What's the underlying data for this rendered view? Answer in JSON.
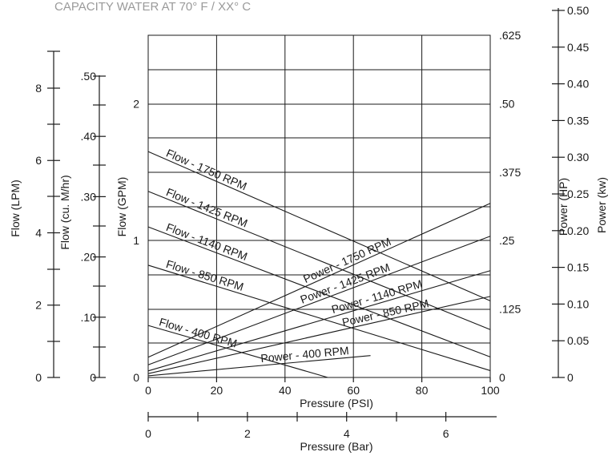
{
  "chart_data": {
    "type": "line",
    "title": "CAPACITY  WATER AT 70° F / XX° C",
    "xlabel": "Pressure (PSI)",
    "xlabel_bar": "Pressure (Bar)",
    "ylabel_gpm": "Flow (GPM)",
    "ylabel_lpm": "Flow (LPM)",
    "ylabel_m3hr": "Flow (cu. M/hr)",
    "ylabel_hp": "Power (HP)",
    "ylabel_kw": "Power (kw)",
    "xlim": [
      0,
      100
    ],
    "ylim_gpm": [
      0,
      2.5
    ],
    "ylim_hp": [
      0,
      0.625
    ],
    "grid": true,
    "psi_ticks": [
      "0",
      "20",
      "40",
      "60",
      "80",
      "100"
    ],
    "gpm_ticks": [
      {
        "v": 0,
        "label": "0"
      },
      {
        "v": 1,
        "label": "1"
      },
      {
        "v": 2,
        "label": "2"
      }
    ],
    "hp_ticks": [
      {
        "v": 0,
        "label": "0"
      },
      {
        "v": 0.125,
        "label": ".125"
      },
      {
        "v": 0.25,
        "label": ".25"
      },
      {
        "v": 0.375,
        "label": ".375"
      },
      {
        "v": 0.5,
        "label": ".50"
      },
      {
        "v": 0.625,
        "label": ".625"
      }
    ],
    "kw_ticks": [
      "0",
      "0.05",
      "0.10",
      "0.15",
      "0.20",
      "0.25",
      "0.30",
      "0.35",
      "0.40",
      "0.45",
      "0.50"
    ],
    "lpm_ticks": [
      {
        "v": 0,
        "label": "0"
      },
      {
        "v": 2,
        "label": "2"
      },
      {
        "v": 4,
        "label": "4"
      },
      {
        "v": 6,
        "label": "6"
      },
      {
        "v": 8,
        "label": "8"
      }
    ],
    "m3hr_ticks": [
      {
        "v": 0,
        "label": "0"
      },
      {
        "v": 0.1,
        "label": ".10"
      },
      {
        "v": 0.2,
        "label": ".20"
      },
      {
        "v": 0.3,
        "label": ".30"
      },
      {
        "v": 0.4,
        "label": ".40"
      },
      {
        "v": 0.5,
        "label": ".50"
      }
    ],
    "bar_ticks": [
      {
        "v": 0,
        "label": "0"
      },
      {
        "v": 2,
        "label": "2"
      },
      {
        "v": 4,
        "label": "4"
      },
      {
        "v": 6,
        "label": "6"
      }
    ],
    "flow_series": [
      {
        "name": "Flow - 1750 RPM",
        "x": [
          0,
          100
        ],
        "y": [
          1.65,
          0.56
        ]
      },
      {
        "name": "Flow - 1425 RPM",
        "x": [
          0,
          100
        ],
        "y": [
          1.36,
          0.35
        ]
      },
      {
        "name": "Flow - 1140 RPM",
        "x": [
          0,
          100
        ],
        "y": [
          1.1,
          0.15
        ]
      },
      {
        "name": "Flow - 850 RPM",
        "x": [
          0,
          100
        ],
        "y": [
          0.82,
          0.05
        ]
      },
      {
        "name": "Flow - 400 RPM",
        "x": [
          0,
          52.5
        ],
        "y": [
          0.38,
          0
        ]
      }
    ],
    "power_series": [
      {
        "name": "Power - 1750 RPM",
        "x": [
          0,
          100
        ],
        "y": [
          0.037,
          0.318
        ]
      },
      {
        "name": "Power - 1425 RPM",
        "x": [
          0,
          100
        ],
        "y": [
          0.023,
          0.258
        ]
      },
      {
        "name": "Power - 1140 RPM",
        "x": [
          0,
          100
        ],
        "y": [
          0.012,
          0.195
        ]
      },
      {
        "name": "Power - 850 RPM",
        "x": [
          0,
          100
        ],
        "y": [
          0.007,
          0.148
        ]
      },
      {
        "name": "Power - 400 RPM",
        "x": [
          0,
          65
        ],
        "y": [
          0.003,
          0.04
        ]
      }
    ]
  }
}
